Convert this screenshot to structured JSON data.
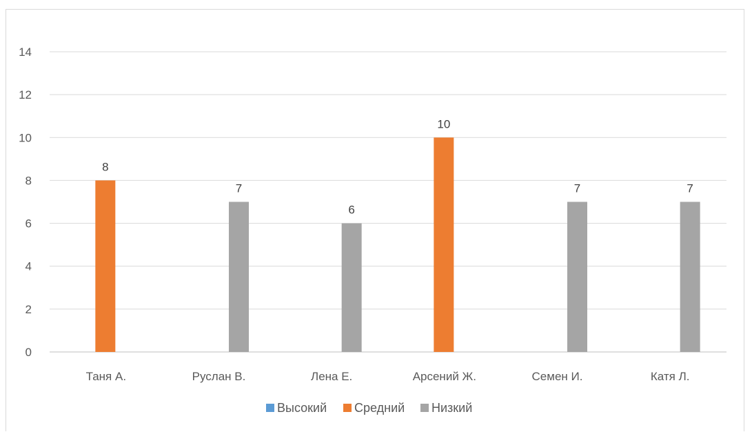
{
  "chart_data": {
    "type": "bar",
    "categories": [
      "Таня А.",
      "Руслан В.",
      "Лена Е.",
      "Арсений Ж.",
      "Семен И.",
      "Катя Л."
    ],
    "series": [
      {
        "name": "Высокий",
        "color": "#5b9bd5",
        "values": [
          null,
          null,
          null,
          null,
          null,
          null
        ]
      },
      {
        "name": "Средний",
        "color": "#ed7d31",
        "values": [
          8,
          null,
          null,
          10,
          null,
          null
        ]
      },
      {
        "name": "Низкий",
        "color": "#a5a5a5",
        "values": [
          null,
          7,
          6,
          null,
          7,
          7
        ]
      }
    ],
    "title": "",
    "xlabel": "",
    "ylabel": "",
    "ylim": [
      0,
      14
    ],
    "yticks": [
      0,
      2,
      4,
      6,
      8,
      10,
      12,
      14
    ],
    "grid": true,
    "data_labels": true,
    "legend_position": "bottom"
  }
}
